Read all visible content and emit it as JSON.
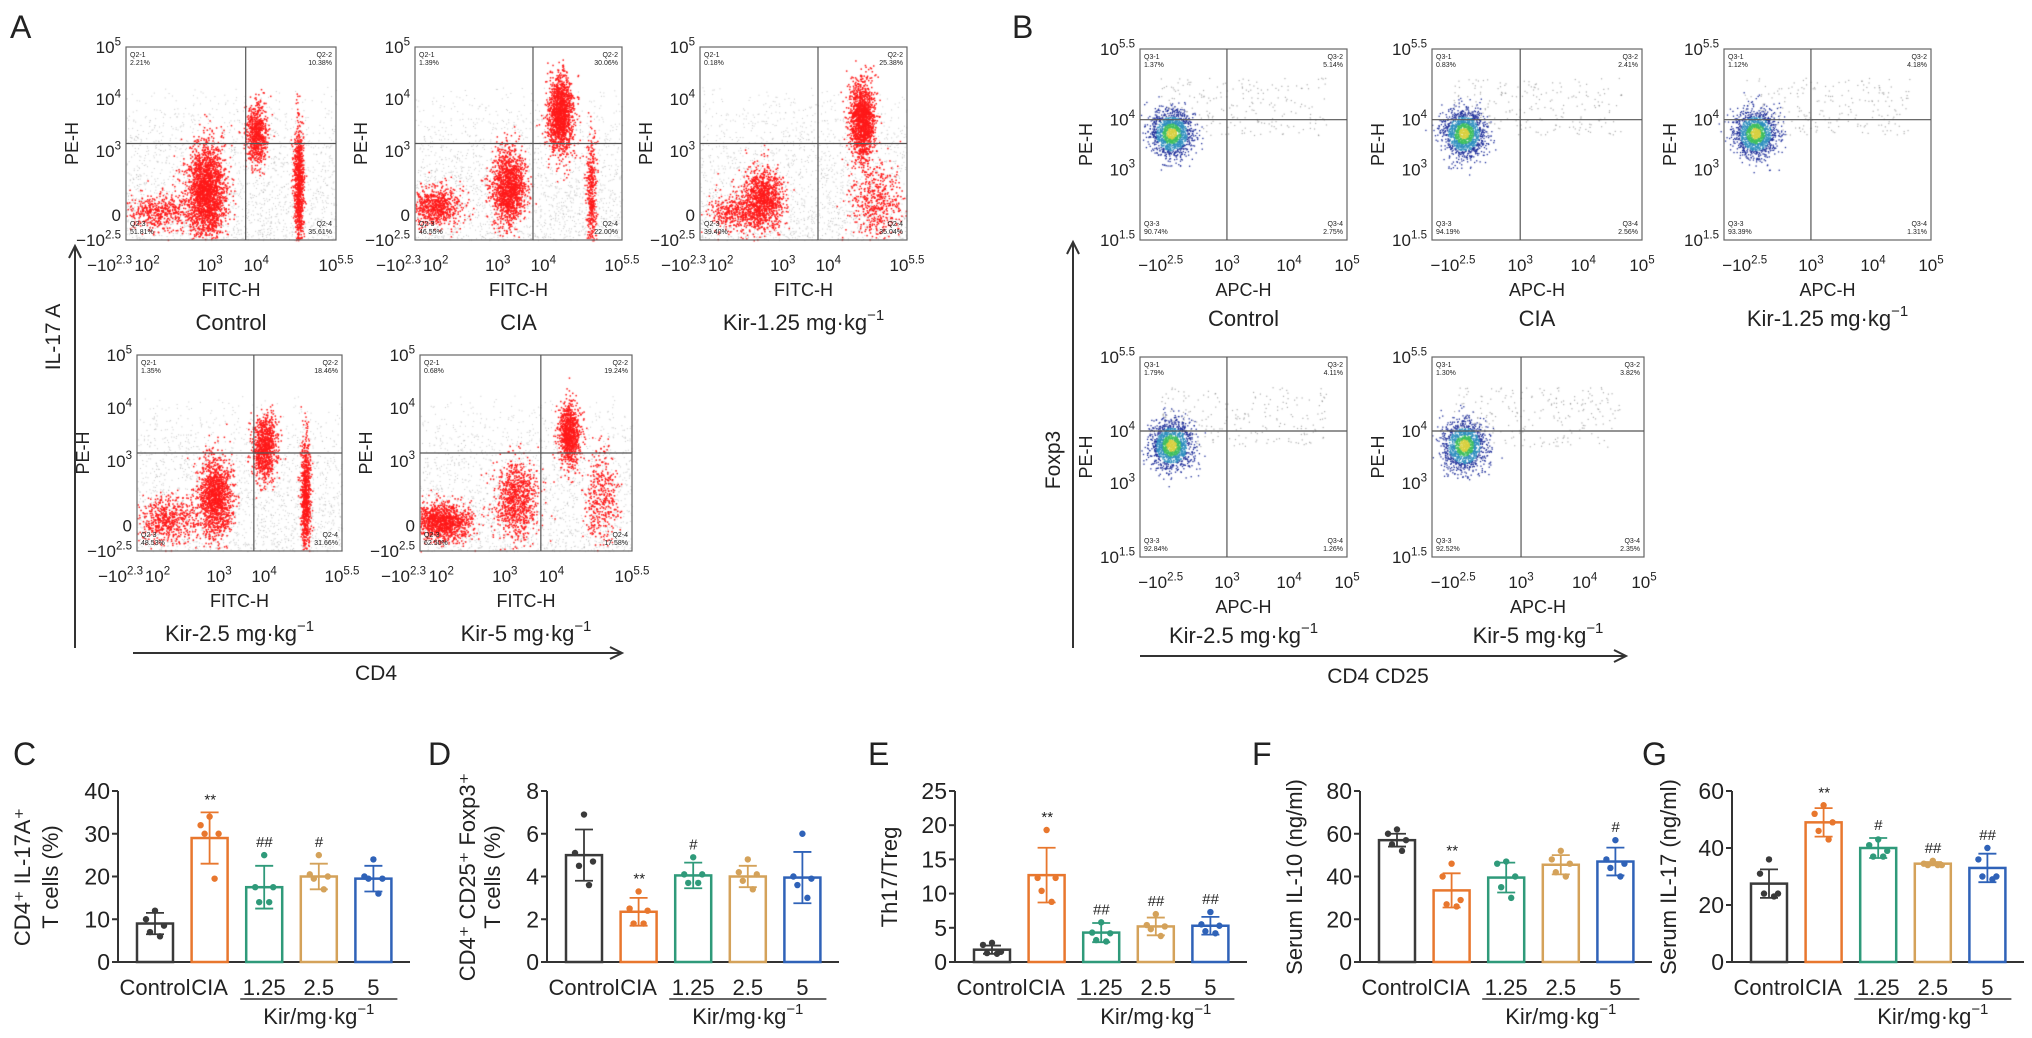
{
  "panels": {
    "A": {
      "label": "A",
      "y_axis_label": "PE-H",
      "x_axis_label": "FITC-H",
      "y_ticks": [
        {
          "t": "10",
          "sup": "5"
        },
        {
          "t": "10",
          "sup": "4"
        },
        {
          "t": "10",
          "sup": "3"
        },
        {
          "t": "0"
        },
        {
          "t": "−10",
          "sup": "2.5"
        }
      ],
      "x_ticks": [
        {
          "t": "−10",
          "sup": "2.3"
        },
        {
          "t": "10",
          "sup": "2"
        },
        {
          "t": "10",
          "sup": "3"
        },
        {
          "t": "10",
          "sup": "4"
        },
        {
          "t": "10",
          "sup": "5.5"
        }
      ],
      "vertical_arrow_label": "IL-17 A",
      "horizontal_arrow_label": "CD4",
      "dot_color": "#ff1a1a",
      "plots": [
        {
          "group": {
            "t": "Control"
          },
          "quadrants": [
            {
              "name": "Q2-1",
              "pct": "2.21%"
            },
            {
              "name": "Q2-2",
              "pct": "10.38%"
            },
            {
              "name": "Q2-3",
              "pct": "51.81%"
            },
            {
              "name": "Q2-4",
              "pct": "35.61%"
            }
          ]
        },
        {
          "group": {
            "t": "CIA"
          },
          "quadrants": [
            {
              "name": "Q2-1",
              "pct": "1.39%"
            },
            {
              "name": "Q2-2",
              "pct": "30.06%"
            },
            {
              "name": "Q2-3",
              "pct": "46.55%"
            },
            {
              "name": "Q2-4",
              "pct": "22.00%"
            }
          ]
        },
        {
          "group": {
            "t": "Kir-1.25 mg·kg",
            "sup": "−1"
          },
          "quadrants": [
            {
              "name": "Q2-1",
              "pct": "0.18%"
            },
            {
              "name": "Q2-2",
              "pct": "25.38%"
            },
            {
              "name": "Q2-3",
              "pct": "39.40%"
            },
            {
              "name": "Q2-4",
              "pct": "35.04%"
            }
          ]
        },
        {
          "group": {
            "t": "Kir-2.5 mg·kg",
            "sup": "−1"
          },
          "quadrants": [
            {
              "name": "Q2-1",
              "pct": "1.35%"
            },
            {
              "name": "Q2-2",
              "pct": "18.46%"
            },
            {
              "name": "Q2-3",
              "pct": "48.53%"
            },
            {
              "name": "Q2-4",
              "pct": "31.66%"
            }
          ]
        },
        {
          "group": {
            "t": "Kir-5 mg·kg",
            "sup": "−1"
          },
          "quadrants": [
            {
              "name": "Q2-1",
              "pct": "0.68%"
            },
            {
              "name": "Q2-2",
              "pct": "19.24%"
            },
            {
              "name": "Q2-3",
              "pct": "62.50%"
            },
            {
              "name": "Q2-4",
              "pct": "17.58%"
            }
          ]
        }
      ]
    },
    "B": {
      "label": "B",
      "y_axis_label": "PE-H",
      "x_axis_label": "APC-H",
      "y_ticks": [
        {
          "t": "10",
          "sup": "5.5"
        },
        {
          "t": "10",
          "sup": "4"
        },
        {
          "t": "10",
          "sup": "3"
        },
        {
          "t": "10",
          "sup": "1.5"
        }
      ],
      "x_ticks": [
        {
          "t": "−10",
          "sup": "2.5"
        },
        {
          "t": "10",
          "sup": "3"
        },
        {
          "t": "10",
          "sup": "4"
        },
        {
          "t": "10",
          "sup": "5"
        }
      ],
      "vertical_arrow_label": "Foxp3",
      "horizontal_arrow_label": "CD4 CD25",
      "density_colors": [
        "#1f2f9a",
        "#2f8fbf",
        "#3fbf5f",
        "#d8d040"
      ],
      "plots": [
        {
          "group": {
            "t": "Control"
          },
          "quadrants": [
            {
              "name": "Q3-1",
              "pct": "1.37%"
            },
            {
              "name": "Q3-2",
              "pct": "5.14%"
            },
            {
              "name": "Q3-3",
              "pct": "90.74%"
            },
            {
              "name": "Q3-4",
              "pct": "2.75%"
            }
          ]
        },
        {
          "group": {
            "t": "CIA"
          },
          "quadrants": [
            {
              "name": "Q3-1",
              "pct": "0.83%"
            },
            {
              "name": "Q3-2",
              "pct": "2.41%"
            },
            {
              "name": "Q3-3",
              "pct": "94.19%"
            },
            {
              "name": "Q3-4",
              "pct": "2.56%"
            }
          ]
        },
        {
          "group": {
            "t": "Kir-1.25 mg·kg",
            "sup": "−1"
          },
          "quadrants": [
            {
              "name": "Q3-1",
              "pct": "1.12%"
            },
            {
              "name": "Q3-2",
              "pct": "4.18%"
            },
            {
              "name": "Q3-3",
              "pct": "93.39%"
            },
            {
              "name": "Q3-4",
              "pct": "1.31%"
            }
          ]
        },
        {
          "group": {
            "t": "Kir-2.5 mg·kg",
            "sup": "−1"
          },
          "quadrants": [
            {
              "name": "Q3-1",
              "pct": "1.79%"
            },
            {
              "name": "Q3-2",
              "pct": "4.11%"
            },
            {
              "name": "Q3-3",
              "pct": "92.84%"
            },
            {
              "name": "Q3-4",
              "pct": "1.26%"
            }
          ]
        },
        {
          "group": {
            "t": "Kir-5 mg·kg",
            "sup": "−1"
          },
          "quadrants": [
            {
              "name": "Q3-1",
              "pct": "1.30%"
            },
            {
              "name": "Q3-2",
              "pct": "3.82%"
            },
            {
              "name": "Q3-3",
              "pct": "92.52%"
            },
            {
              "name": "Q3-4",
              "pct": "2.35%"
            }
          ]
        }
      ]
    }
  },
  "chart_data": [
    {
      "panel": "C",
      "type": "bar",
      "categories": [
        "Control",
        "CIA",
        "1.25",
        "2.5",
        "5"
      ],
      "group_label": {
        "t": "Kir/mg·kg",
        "sup": "−1"
      },
      "ylabel": [
        "CD4⁺ IL-17A⁺",
        "T cells (%)"
      ],
      "ylim": [
        0,
        40
      ],
      "yticks": [
        "0",
        "10",
        "20",
        "30",
        "40"
      ],
      "colors": [
        "#3a3a3a",
        "#e8772e",
        "#2f9a7a",
        "#d4a25a",
        "#2f62b8"
      ],
      "values": [
        9,
        29,
        17.5,
        20,
        19.5
      ],
      "sd": [
        2.5,
        6,
        5,
        3,
        3
      ],
      "points": [
        [
          12,
          10,
          8.5,
          7,
          6
        ],
        [
          34,
          32,
          30,
          30,
          19.5
        ],
        [
          25,
          17.5,
          17.5,
          14,
          14
        ],
        [
          25,
          20.5,
          20,
          19.5,
          17
        ],
        [
          24,
          20,
          19.5,
          19.5,
          16
        ]
      ],
      "significance": [
        "",
        "**",
        "##",
        "#",
        ""
      ]
    },
    {
      "panel": "D",
      "type": "bar",
      "categories": [
        "Control",
        "CIA",
        "1.25",
        "2.5",
        "5"
      ],
      "group_label": {
        "t": "Kir/mg·kg",
        "sup": "−1"
      },
      "ylabel": [
        "CD4⁺ CD25⁺ Foxp3⁺",
        "T cells (%)"
      ],
      "ylim": [
        0,
        8
      ],
      "yticks": [
        "0",
        "2",
        "4",
        "6",
        "8"
      ],
      "colors": [
        "#3a3a3a",
        "#e8772e",
        "#2f9a7a",
        "#d4a25a",
        "#2f62b8"
      ],
      "values": [
        5.0,
        2.35,
        4.05,
        4.0,
        3.95
      ],
      "sd": [
        1.2,
        0.65,
        0.6,
        0.5,
        1.2
      ],
      "points": [
        [
          6.9,
          5.1,
          4.7,
          4.5,
          3.6
        ],
        [
          3.3,
          2.5,
          2.4,
          1.8,
          1.8
        ],
        [
          4.9,
          4.1,
          4.1,
          3.7,
          3.7
        ],
        [
          4.8,
          4.2,
          4.1,
          3.8,
          3.4
        ],
        [
          6.0,
          4.0,
          3.9,
          3.6,
          3.0
        ]
      ],
      "significance": [
        "",
        "**",
        "#",
        "",
        ""
      ]
    },
    {
      "panel": "E",
      "type": "bar",
      "categories": [
        "Control",
        "CIA",
        "1.25",
        "2.5",
        "5"
      ],
      "group_label": {
        "t": "Kir/mg·kg",
        "sup": "−1"
      },
      "ylabel": [
        "Th17/Treg"
      ],
      "ylim": [
        0,
        25
      ],
      "yticks": [
        "0",
        "5",
        "10",
        "15",
        "20",
        "25"
      ],
      "colors": [
        "#3a3a3a",
        "#e8772e",
        "#2f9a7a",
        "#d4a25a",
        "#2f62b8"
      ],
      "values": [
        1.8,
        12.7,
        4.3,
        5.2,
        5.3
      ],
      "sd": [
        0.6,
        4.0,
        1.4,
        1.3,
        1.3
      ],
      "points": [
        [
          2.8,
          2.5,
          1.5,
          1.3,
          1.2
        ],
        [
          19.3,
          12.3,
          12.3,
          10.4,
          8.8
        ],
        [
          5.8,
          4.3,
          4.2,
          3.2,
          3.0
        ],
        [
          7.0,
          5.4,
          5.2,
          4.8,
          3.8
        ],
        [
          7.3,
          5.5,
          5.3,
          4.5,
          4.2
        ]
      ],
      "significance": [
        "",
        "**",
        "##",
        "##",
        "##"
      ]
    },
    {
      "panel": "F",
      "type": "bar",
      "categories": [
        "Control",
        "CIA",
        "1.25",
        "2.5",
        "5"
      ],
      "group_label": {
        "t": "Kir/mg·kg",
        "sup": "−1"
      },
      "ylabel": [
        "Serum IL-10 (ng/ml)"
      ],
      "ylim": [
        0,
        80
      ],
      "yticks": [
        "0",
        "20",
        "40",
        "60",
        "80"
      ],
      "colors": [
        "#3a3a3a",
        "#e8772e",
        "#2f9a7a",
        "#d4a25a",
        "#2f62b8"
      ],
      "values": [
        57,
        33.5,
        39.5,
        45.5,
        47
      ],
      "sd": [
        3,
        8,
        7,
        4.5,
        6.5
      ],
      "points": [
        [
          62,
          60,
          57,
          55,
          52
        ],
        [
          46,
          40,
          29,
          27,
          26
        ],
        [
          47,
          46,
          40,
          35,
          30
        ],
        [
          52,
          48,
          46,
          42,
          40
        ],
        [
          57,
          48,
          46,
          44,
          40
        ]
      ],
      "significance": [
        "",
        "**",
        "",
        "",
        "#"
      ]
    },
    {
      "panel": "G",
      "type": "bar",
      "categories": [
        "Control",
        "CIA",
        "1.25",
        "2.5",
        "5"
      ],
      "group_label": {
        "t": "Kir/mg·kg",
        "sup": "−1"
      },
      "ylabel": [
        "Serum IL-17 (ng/ml)"
      ],
      "ylim": [
        0,
        60
      ],
      "yticks": [
        "0",
        "20",
        "40",
        "60"
      ],
      "colors": [
        "#3a3a3a",
        "#e8772e",
        "#2f9a7a",
        "#d4a25a",
        "#2f62b8"
      ],
      "values": [
        27.5,
        49,
        40,
        34.5,
        33
      ],
      "sd": [
        5,
        5,
        3.5,
        0.6,
        5
      ],
      "points": [
        [
          36,
          31,
          24,
          24,
          23
        ],
        [
          55,
          52,
          49,
          46,
          43
        ],
        [
          43,
          41,
          39,
          37,
          37
        ],
        [
          35.5,
          34.5,
          34,
          34,
          34
        ],
        [
          40,
          36,
          30,
          30,
          29
        ]
      ],
      "significance": [
        "",
        "**",
        "#",
        "##",
        "##"
      ]
    }
  ]
}
